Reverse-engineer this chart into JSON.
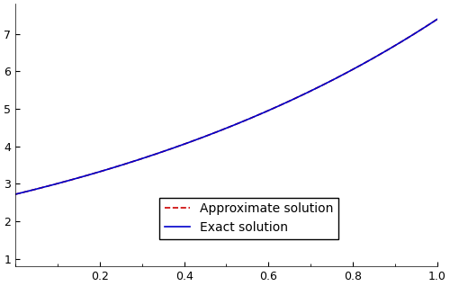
{
  "x_min": 0.0,
  "x_max": 1.0,
  "y_min": 0.8,
  "y_max": 7.8,
  "x_ticks": [
    0.2,
    0.4,
    0.6,
    0.8,
    1.0
  ],
  "y_ticks": [
    1,
    2,
    3,
    4,
    5,
    6,
    7
  ],
  "exact_color": "#0000cc",
  "approx_color": "#cc0000",
  "exact_label": "Exact solution",
  "approx_label": "Approximate solution",
  "exact_lw": 1.2,
  "approx_lw": 1.2,
  "m": 8,
  "bg_color": "#ffffff",
  "legend_fontsize": 10,
  "tick_fontsize": 9
}
